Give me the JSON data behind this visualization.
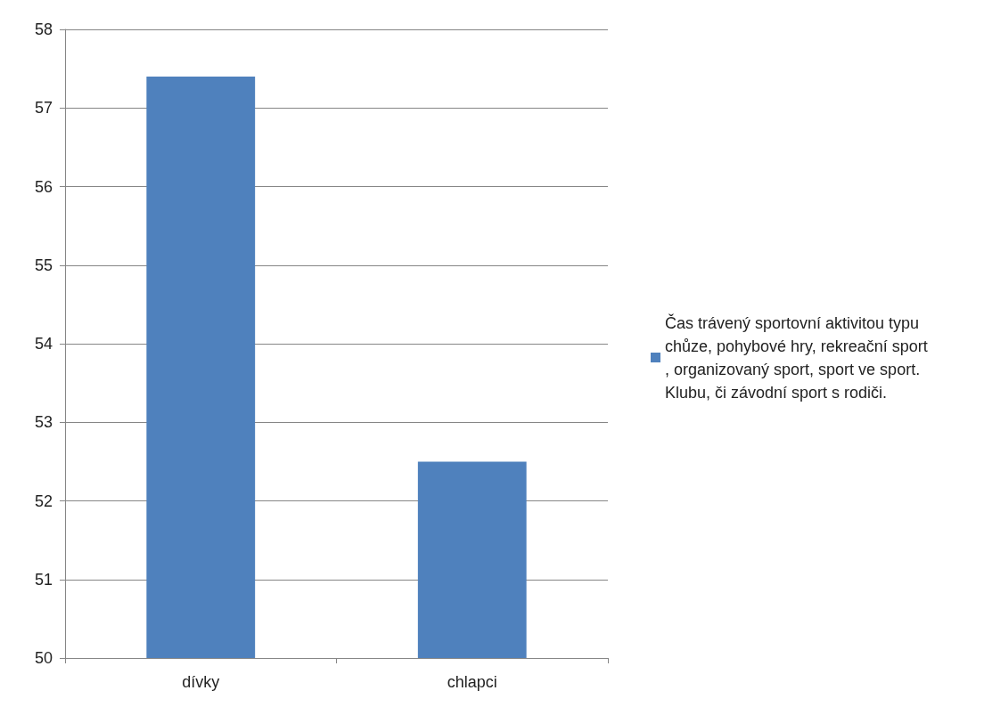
{
  "chart_data": {
    "type": "bar",
    "categories": [
      "dívky",
      "chlapci"
    ],
    "series": [
      {
        "name": "Čas trávený sportovní aktivitou typu chůze, pohybové hry, rekreační sport, organizovaný sport, sport ve sport. Klubu, či závodní sport s rodiči.",
        "color": "#4f81bd",
        "values": [
          57.4,
          52.5
        ]
      }
    ],
    "ylim": [
      50,
      58
    ],
    "yticks": [
      50,
      51,
      52,
      53,
      54,
      55,
      56,
      57,
      58
    ],
    "grid": "y",
    "legend": "right"
  }
}
